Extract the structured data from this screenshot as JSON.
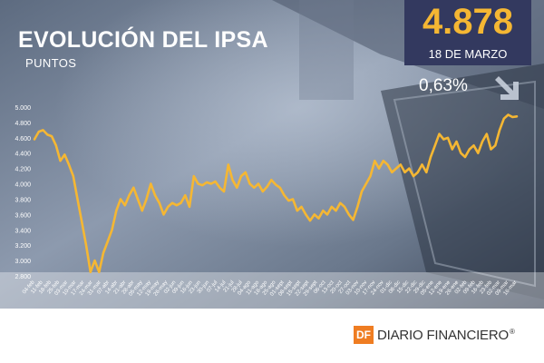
{
  "header": {
    "title": "EVOLUCIÓN DEL IPSA",
    "subtitle": "PUNTOS"
  },
  "summary": {
    "value": "4.878",
    "date": "18 DE MARZO",
    "change": "0,63%",
    "change_icon": "down-right-arrow-icon"
  },
  "colors": {
    "line": "#f5b733",
    "value_box": "#33395f",
    "accent_value": "#f5b733",
    "logo": "#ef7d22"
  },
  "footer": {
    "logo_mark": "DF",
    "brand": "DIARIO FINANCIERO",
    "reg": "®"
  },
  "chart_data": {
    "type": "line",
    "title": "EVOLUCIÓN DEL IPSA",
    "ylabel": "PUNTOS",
    "ylim": [
      2800,
      5000
    ],
    "yticks": [
      2800,
      3000,
      3200,
      3400,
      3600,
      3800,
      4000,
      4200,
      4400,
      4600,
      4800,
      5000
    ],
    "ytick_labels": [
      "2.800",
      "3.000",
      "3.200",
      "3.400",
      "3.600",
      "3.800",
      "4.000",
      "4.200",
      "4.400",
      "4.600",
      "4.800",
      "5.000"
    ],
    "xtick_labels": [
      "04-feb",
      "11-feb",
      "18-feb",
      "25-feb",
      "03-mar",
      "10-mar",
      "17-mar",
      "24-mar",
      "31-mar",
      "07-abr",
      "14-abr",
      "21-abr",
      "28-abr",
      "05-may",
      "12-may",
      "19-may",
      "26-may",
      "02-jun",
      "09-jun",
      "16-jun",
      "23-jun",
      "30-jun",
      "07-jul",
      "14-jul",
      "21-jul",
      "28-jul",
      "04-ago",
      "11-ago",
      "18-ago",
      "25-ago",
      "01-sept",
      "08-sept",
      "15-sept",
      "22-sept",
      "29-sept",
      "06-oct",
      "13-oct",
      "20-oct",
      "27-oct",
      "03-nov",
      "10-nov",
      "17-nov",
      "24-nov",
      "01-dic",
      "08-dic",
      "15-dic",
      "22-dic",
      "29-dic",
      "05-ene",
      "12-ene",
      "19-ene",
      "26-ene",
      "02-feb",
      "09-feb",
      "16-feb",
      "23-feb",
      "02-mar",
      "09-mar",
      "16-mar"
    ],
    "grid": false,
    "series": [
      {
        "values": [
          4580,
          4680,
          4700,
          4640,
          4620,
          4500,
          4300,
          4380,
          4250,
          4100,
          3800,
          3500,
          3200,
          2850,
          3000,
          2850,
          3100,
          3250,
          3400,
          3650,
          3800,
          3720,
          3850,
          3950,
          3800,
          3650,
          3800,
          4000,
          3850,
          3750,
          3600,
          3700,
          3750,
          3720,
          3750,
          3850,
          3700,
          4100,
          4000,
          3980,
          4020,
          4000,
          4030,
          3950,
          3900,
          4250,
          4050,
          3950,
          4100,
          4150,
          4000,
          3950,
          4000,
          3900,
          3960,
          4050,
          3990,
          3950,
          3850,
          3780,
          3800,
          3650,
          3700,
          3600,
          3520,
          3600,
          3550,
          3650,
          3600,
          3700,
          3650,
          3750,
          3700,
          3600,
          3530,
          3700,
          3900,
          4000,
          4100,
          4300,
          4200,
          4300,
          4250,
          4150,
          4200,
          4250,
          4150,
          4200,
          4100,
          4150,
          4250,
          4150,
          4350,
          4500,
          4650,
          4580,
          4600,
          4450,
          4550,
          4400,
          4350,
          4450,
          4500,
          4400,
          4550,
          4650,
          4450,
          4500,
          4700,
          4850,
          4900,
          4870,
          4878
        ]
      }
    ]
  }
}
